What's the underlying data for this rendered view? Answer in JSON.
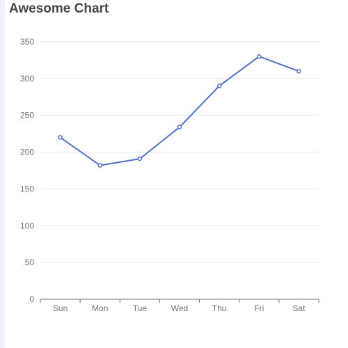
{
  "chart_data": {
    "type": "line",
    "title": "Awesome Chart",
    "categories": [
      "Sun",
      "Mon",
      "Tue",
      "Wed",
      "Thu",
      "Fri",
      "Sat"
    ],
    "series": [
      {
        "values": [
          220,
          182,
          191,
          234,
          290,
          330,
          310
        ]
      }
    ],
    "yticks": [
      0,
      50,
      100,
      150,
      200,
      250,
      300,
      350
    ],
    "ylim": [
      0,
      350
    ],
    "grid": true,
    "legend": "none",
    "colors": {
      "line": "#5470c6",
      "grid": "#e0e6f1",
      "axis": "#6e7079",
      "title": "#464646"
    }
  }
}
